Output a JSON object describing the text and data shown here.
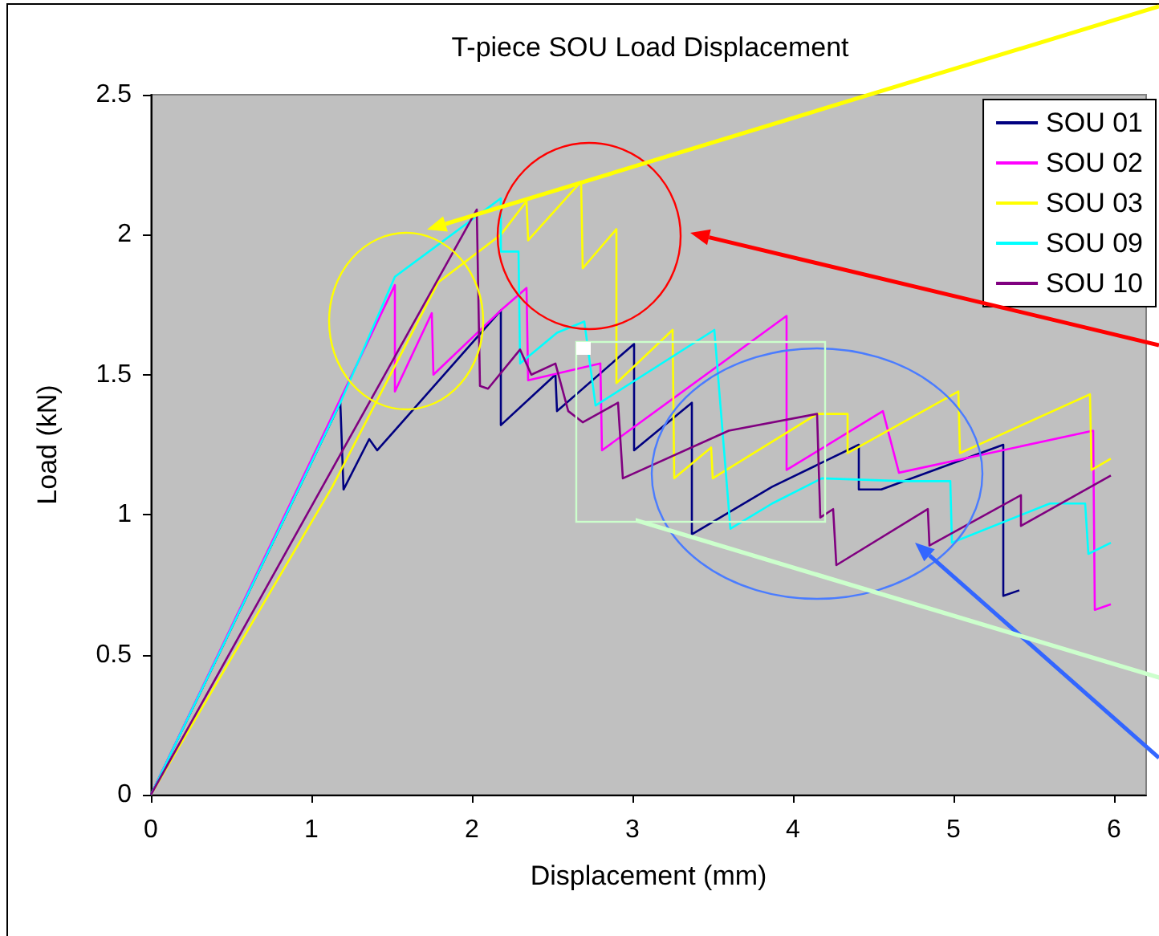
{
  "chart_data": {
    "type": "line",
    "title": "T-piece SOU Load Displacement",
    "xlabel": "Displacement (mm)",
    "ylabel": "Load (kN)",
    "xlim": [
      0,
      6.2
    ],
    "xticks": [
      0,
      1,
      2,
      3,
      4,
      5,
      6
    ],
    "ylim": [
      0,
      2.5
    ],
    "yticks": [
      0,
      0.5,
      1,
      1.5,
      2,
      2.5
    ],
    "grid": false,
    "legend": "top right",
    "marker": "none",
    "line_style": "solid",
    "series": [
      {
        "name": "SOU 01",
        "color": "#000080",
        "x": [
          0,
          1.18,
          1.2,
          1.36,
          1.41,
          2.18,
          2.18,
          2.52,
          2.53,
          3.01,
          3.01,
          3.37,
          3.37,
          3.87,
          4.41,
          4.41,
          4.55,
          5.31,
          5.31,
          5.41
        ],
        "values": [
          0,
          1.4,
          1.09,
          1.27,
          1.23,
          1.73,
          1.32,
          1.5,
          1.37,
          1.61,
          1.23,
          1.4,
          0.93,
          1.1,
          1.25,
          1.09,
          1.09,
          1.25,
          0.71,
          0.73
        ]
      },
      {
        "name": "SOU 02",
        "color": "#ff00ff",
        "x": [
          0,
          1.52,
          1.52,
          1.75,
          1.76,
          2.18,
          2.34,
          2.35,
          2.8,
          2.81,
          3.96,
          3.96,
          4.56,
          4.66,
          5.87,
          5.88,
          5.98
        ],
        "values": [
          0,
          1.82,
          1.44,
          1.72,
          1.5,
          1.73,
          1.81,
          1.48,
          1.54,
          1.23,
          1.71,
          1.16,
          1.37,
          1.15,
          1.3,
          0.66,
          0.68
        ]
      },
      {
        "name": "SOU 03",
        "color": "#ffff00",
        "x": [
          0,
          1.13,
          1.79,
          2.18,
          2.34,
          2.35,
          2.68,
          2.69,
          2.9,
          2.9,
          3.25,
          3.26,
          3.49,
          3.5,
          4.15,
          4.34,
          4.34,
          5.03,
          5.04,
          5.85,
          5.86,
          5.98
        ],
        "values": [
          0,
          1.1,
          1.83,
          2.0,
          2.12,
          1.98,
          2.19,
          1.88,
          2.02,
          1.47,
          1.66,
          1.13,
          1.24,
          1.13,
          1.36,
          1.36,
          1.22,
          1.44,
          1.22,
          1.43,
          1.16,
          1.2
        ]
      },
      {
        "name": "SOU 09",
        "color": "#00ffff",
        "x": [
          0,
          1.18,
          1.52,
          2.18,
          2.18,
          2.29,
          2.3,
          2.53,
          2.7,
          2.77,
          3.51,
          3.61,
          3.87,
          4.18,
          4.69,
          4.98,
          4.99,
          5.6,
          5.82,
          5.84,
          5.98
        ],
        "values": [
          0,
          1.4,
          1.85,
          2.13,
          1.94,
          1.94,
          1.54,
          1.65,
          1.69,
          1.39,
          1.66,
          0.95,
          1.04,
          1.13,
          1.12,
          1.12,
          0.9,
          1.04,
          1.04,
          0.86,
          0.9
        ]
      },
      {
        "name": "SOU 10",
        "color": "#800080",
        "x": [
          0,
          2.03,
          2.05,
          2.1,
          2.3,
          2.37,
          2.52,
          2.6,
          2.69,
          2.91,
          2.94,
          3.6,
          4.15,
          4.17,
          4.25,
          4.27,
          4.84,
          4.85,
          5.42,
          5.42,
          5.98
        ],
        "values": [
          0,
          2.09,
          1.46,
          1.45,
          1.59,
          1.5,
          1.54,
          1.37,
          1.33,
          1.4,
          1.13,
          1.3,
          1.36,
          0.99,
          1.02,
          0.82,
          1.02,
          0.89,
          1.07,
          0.96,
          1.14
        ]
      }
    ]
  }
}
